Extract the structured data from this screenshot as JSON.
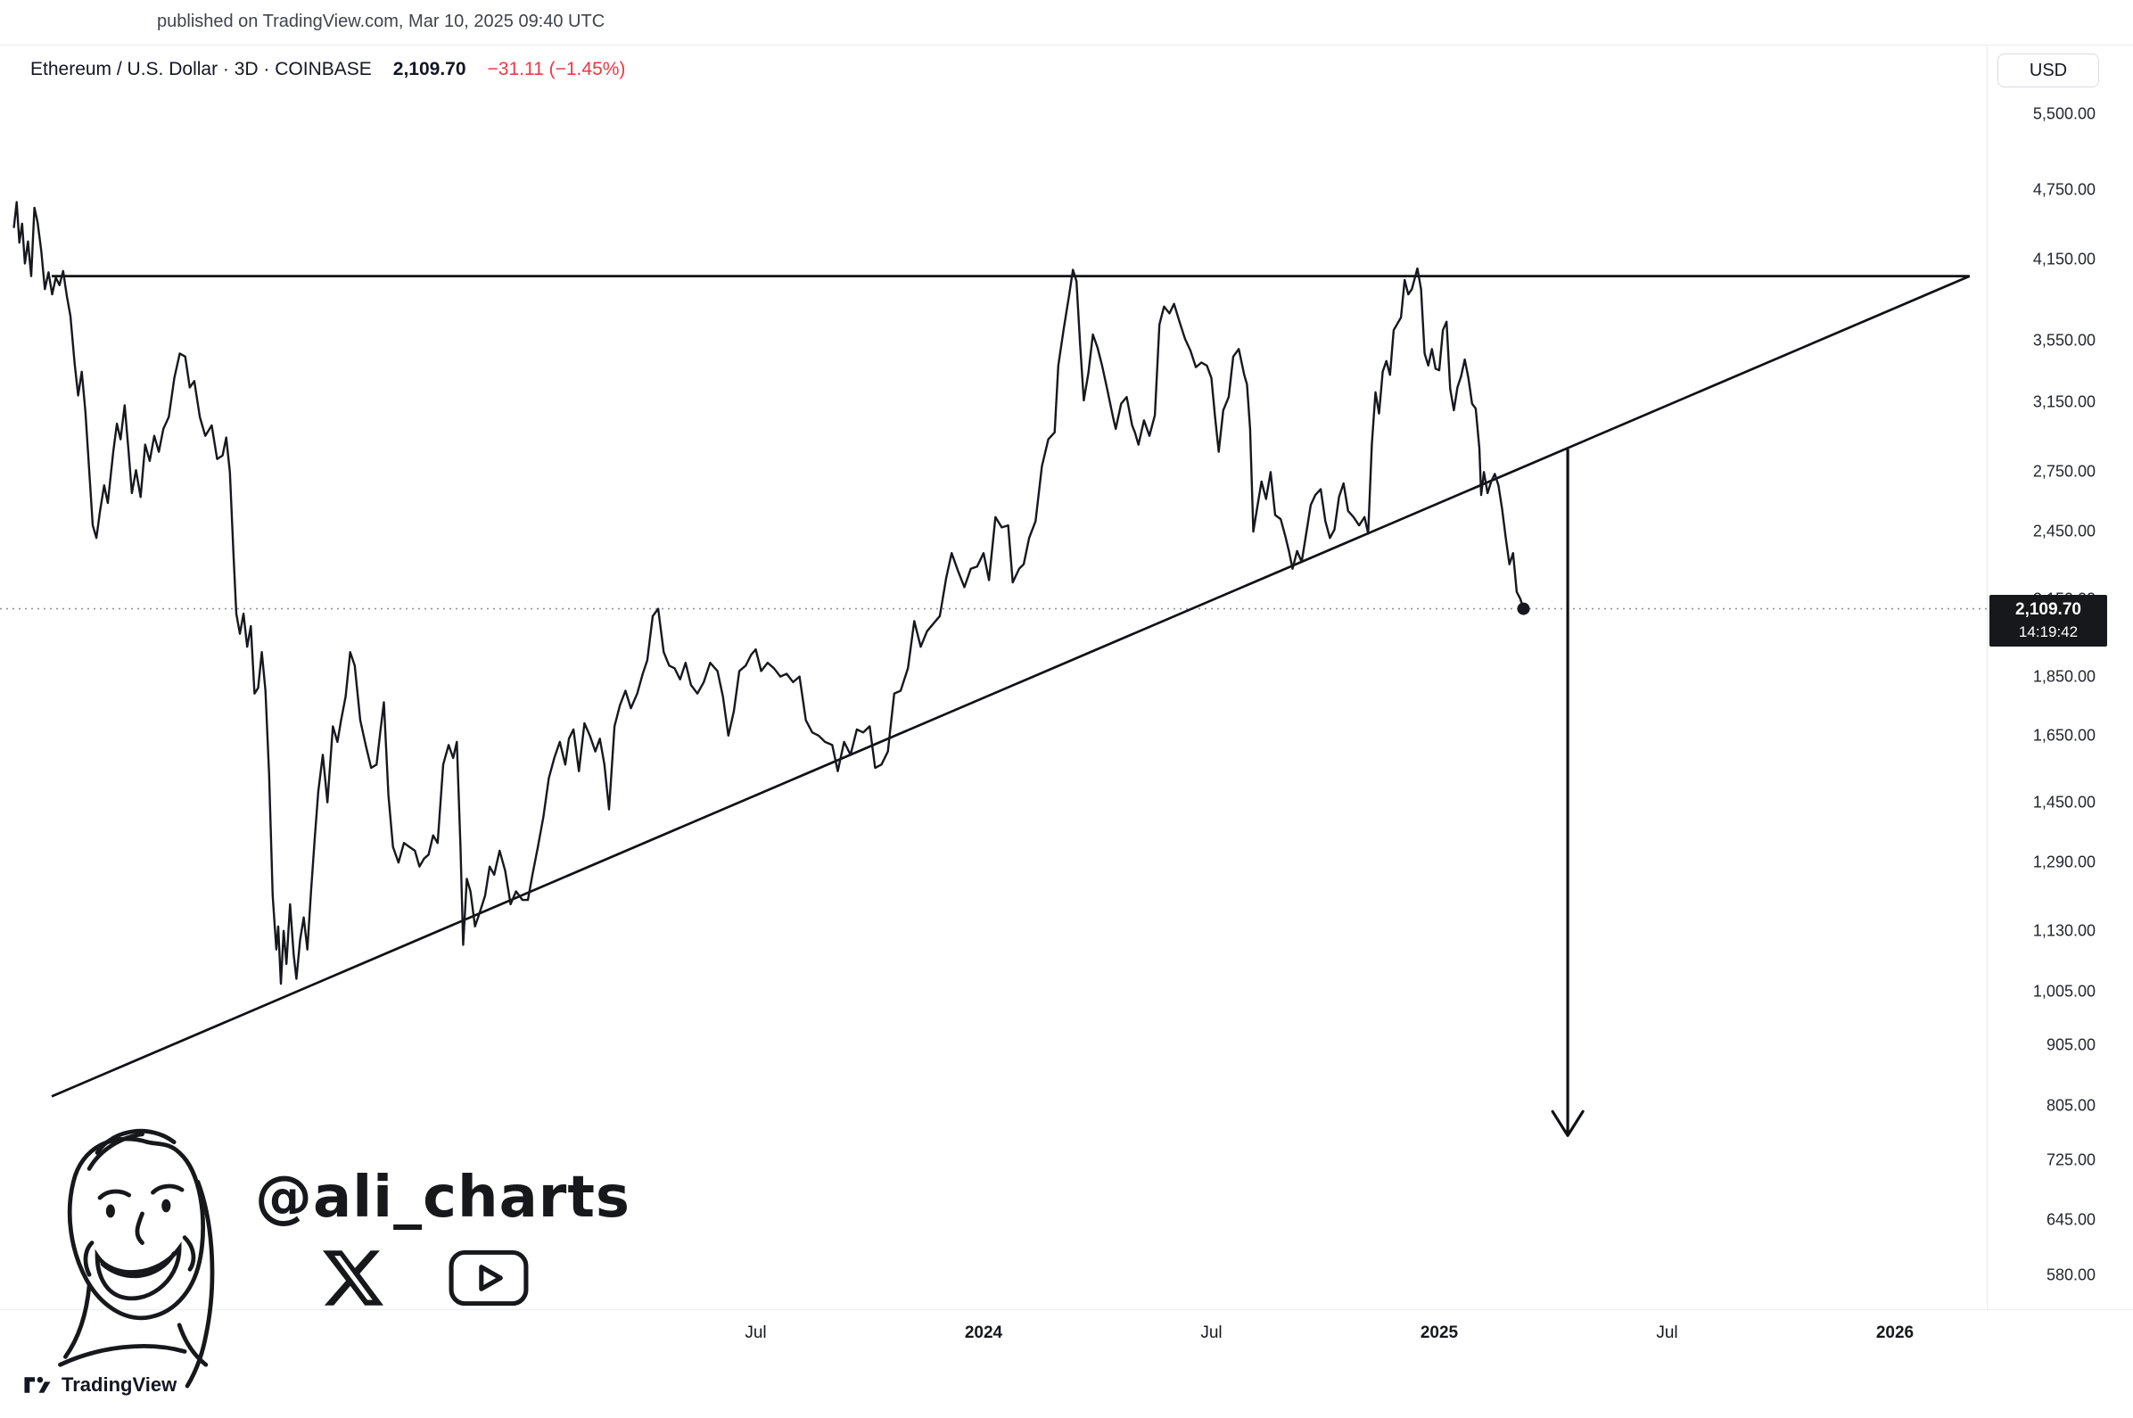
{
  "page": {
    "published_line": "published on TradingView.com, Mar 10, 2025 09:40 UTC"
  },
  "header": {
    "symbol_title": "Ethereum / U.S. Dollar · 3D · COINBASE",
    "last_price": "2,109.70",
    "change": "−31.11 (−1.45%)",
    "currency_button": "USD"
  },
  "price_label": {
    "price": "2,109.70",
    "countdown": "14:19:42"
  },
  "watermark": {
    "handle": "@ali_charts",
    "icons": [
      "x-logo",
      "youtube-logo"
    ]
  },
  "footer": {
    "brand": "TradingView"
  },
  "colors": {
    "line": "#16181d",
    "trendline": "#101114",
    "down_red": "#f23645",
    "axis_text": "#23262e",
    "grid": "#e9ebf0",
    "label_bg": "#17181b",
    "dotted_price_line": "#9094a0"
  },
  "chart_data": {
    "type": "line",
    "title": "Ethereum / U.S. Dollar",
    "exchange": "COINBASE",
    "interval": "3D",
    "scale": "log",
    "legend_position": "none",
    "grid": false,
    "y_ticks": [
      {
        "v": 5500,
        "label": "5,500.00"
      },
      {
        "v": 4750,
        "label": "4,750.00"
      },
      {
        "v": 4150,
        "label": "4,150.00"
      },
      {
        "v": 3550,
        "label": "3,550.00"
      },
      {
        "v": 3150,
        "label": "3,150.00"
      },
      {
        "v": 2750,
        "label": "2,750.00"
      },
      {
        "v": 2450,
        "label": "2,450.00"
      },
      {
        "v": 2150,
        "label": "2,150.00"
      },
      {
        "v": 1850,
        "label": "1,850.00"
      },
      {
        "v": 1650,
        "label": "1,650.00"
      },
      {
        "v": 1450,
        "label": "1,450.00"
      },
      {
        "v": 1290,
        "label": "1,290.00"
      },
      {
        "v": 1130,
        "label": "1,130.00"
      },
      {
        "v": 1005,
        "label": "1,005.00"
      },
      {
        "v": 905,
        "label": "905.00"
      },
      {
        "v": 805,
        "label": "805.00"
      },
      {
        "v": 725,
        "label": "725.00"
      },
      {
        "v": 645,
        "label": "645.00"
      },
      {
        "v": 580,
        "label": "580.00"
      }
    ],
    "x_ticks": [
      {
        "t": 2023.5,
        "label": "Jul",
        "year": false
      },
      {
        "t": 2024.0,
        "label": "2024",
        "year": true
      },
      {
        "t": 2024.5,
        "label": "Jul",
        "year": false
      },
      {
        "t": 2025.0,
        "label": "2025",
        "year": true
      },
      {
        "t": 2025.5,
        "label": "Jul",
        "year": false
      },
      {
        "t": 2026.0,
        "label": "2026",
        "year": true
      }
    ],
    "last_point": {
      "t": 2025.185,
      "price": 2109.7
    },
    "annotations": {
      "resistance_line": {
        "from": {
          "t": 2021.955,
          "p": 4020
        },
        "to": {
          "t": 2026.164,
          "p": 4020
        }
      },
      "support_line": {
        "from": {
          "t": 2021.955,
          "p": 820
        },
        "to": {
          "t": 2026.164,
          "p": 4020
        }
      },
      "target_arrow": {
        "t": 2025.282,
        "from_p": 2875,
        "to_p": 760
      },
      "price_line": {
        "p": 2109.7
      }
    },
    "series": [
      [
        2021.872,
        4420
      ],
      [
        2021.878,
        4640
      ],
      [
        2021.884,
        4290
      ],
      [
        2021.89,
        4450
      ],
      [
        2021.896,
        4120
      ],
      [
        2021.903,
        4300
      ],
      [
        2021.91,
        4020
      ],
      [
        2021.917,
        4590
      ],
      [
        2021.924,
        4460
      ],
      [
        2021.932,
        4220
      ],
      [
        2021.94,
        3920
      ],
      [
        2021.948,
        4050
      ],
      [
        2021.956,
        3880
      ],
      [
        2021.964,
        4010
      ],
      [
        2021.972,
        3950
      ],
      [
        2021.98,
        4060
      ],
      [
        2021.988,
        3870
      ],
      [
        2021.996,
        3720
      ],
      [
        2022.005,
        3400
      ],
      [
        2022.013,
        3190
      ],
      [
        2022.021,
        3340
      ],
      [
        2022.029,
        3090
      ],
      [
        2022.045,
        2480
      ],
      [
        2022.053,
        2420
      ],
      [
        2022.061,
        2550
      ],
      [
        2022.07,
        2680
      ],
      [
        2022.078,
        2590
      ],
      [
        2022.09,
        2860
      ],
      [
        2022.098,
        3020
      ],
      [
        2022.106,
        2930
      ],
      [
        2022.115,
        3130
      ],
      [
        2022.123,
        2880
      ],
      [
        2022.131,
        2640
      ],
      [
        2022.14,
        2760
      ],
      [
        2022.15,
        2620
      ],
      [
        2022.16,
        2900
      ],
      [
        2022.17,
        2810
      ],
      [
        2022.18,
        2950
      ],
      [
        2022.19,
        2860
      ],
      [
        2022.2,
        2990
      ],
      [
        2022.212,
        3060
      ],
      [
        2022.224,
        3300
      ],
      [
        2022.236,
        3460
      ],
      [
        2022.248,
        3440
      ],
      [
        2022.258,
        3240
      ],
      [
        2022.268,
        3280
      ],
      [
        2022.28,
        3060
      ],
      [
        2022.292,
        2950
      ],
      [
        2022.306,
        3010
      ],
      [
        2022.318,
        2820
      ],
      [
        2022.33,
        2840
      ],
      [
        2022.338,
        2940
      ],
      [
        2022.346,
        2750
      ],
      [
        2022.354,
        2340
      ],
      [
        2022.36,
        2090
      ],
      [
        2022.368,
        2010
      ],
      [
        2022.376,
        2090
      ],
      [
        2022.384,
        1960
      ],
      [
        2022.392,
        2040
      ],
      [
        2022.4,
        1790
      ],
      [
        2022.408,
        1810
      ],
      [
        2022.416,
        1940
      ],
      [
        2022.424,
        1800
      ],
      [
        2022.432,
        1530
      ],
      [
        2022.44,
        1210
      ],
      [
        2022.448,
        1090
      ],
      [
        2022.452,
        1140
      ],
      [
        2022.458,
        1020
      ],
      [
        2022.464,
        1130
      ],
      [
        2022.47,
        1060
      ],
      [
        2022.478,
        1190
      ],
      [
        2022.486,
        1080
      ],
      [
        2022.492,
        1030
      ],
      [
        2022.5,
        1110
      ],
      [
        2022.508,
        1160
      ],
      [
        2022.516,
        1090
      ],
      [
        2022.524,
        1220
      ],
      [
        2022.532,
        1350
      ],
      [
        2022.54,
        1480
      ],
      [
        2022.55,
        1590
      ],
      [
        2022.56,
        1450
      ],
      [
        2022.572,
        1680
      ],
      [
        2022.582,
        1630
      ],
      [
        2022.59,
        1700
      ],
      [
        2022.6,
        1780
      ],
      [
        2022.61,
        1940
      ],
      [
        2022.62,
        1890
      ],
      [
        2022.632,
        1700
      ],
      [
        2022.644,
        1620
      ],
      [
        2022.656,
        1550
      ],
      [
        2022.668,
        1560
      ],
      [
        2022.676,
        1660
      ],
      [
        2022.684,
        1760
      ],
      [
        2022.694,
        1470
      ],
      [
        2022.704,
        1330
      ],
      [
        2022.716,
        1290
      ],
      [
        2022.728,
        1340
      ],
      [
        2022.74,
        1330
      ],
      [
        2022.752,
        1320
      ],
      [
        2022.762,
        1280
      ],
      [
        2022.772,
        1300
      ],
      [
        2022.782,
        1310
      ],
      [
        2022.792,
        1360
      ],
      [
        2022.802,
        1340
      ],
      [
        2022.814,
        1560
      ],
      [
        2022.826,
        1620
      ],
      [
        2022.836,
        1580
      ],
      [
        2022.844,
        1630
      ],
      [
        2022.852,
        1330
      ],
      [
        2022.858,
        1100
      ],
      [
        2022.866,
        1250
      ],
      [
        2022.874,
        1220
      ],
      [
        2022.884,
        1140
      ],
      [
        2022.894,
        1170
      ],
      [
        2022.906,
        1210
      ],
      [
        2022.916,
        1280
      ],
      [
        2022.926,
        1260
      ],
      [
        2022.938,
        1320
      ],
      [
        2022.95,
        1270
      ],
      [
        2022.962,
        1190
      ],
      [
        2022.974,
        1220
      ],
      [
        2022.988,
        1200
      ],
      [
        2023.0,
        1200
      ],
      [
        2023.01,
        1260
      ],
      [
        2023.022,
        1330
      ],
      [
        2023.034,
        1410
      ],
      [
        2023.046,
        1520
      ],
      [
        2023.058,
        1580
      ],
      [
        2023.07,
        1630
      ],
      [
        2023.082,
        1560
      ],
      [
        2023.09,
        1640
      ],
      [
        2023.1,
        1670
      ],
      [
        2023.112,
        1540
      ],
      [
        2023.124,
        1690
      ],
      [
        2023.136,
        1650
      ],
      [
        2023.148,
        1600
      ],
      [
        2023.158,
        1640
      ],
      [
        2023.168,
        1560
      ],
      [
        2023.178,
        1430
      ],
      [
        2023.19,
        1680
      ],
      [
        2023.202,
        1750
      ],
      [
        2023.214,
        1800
      ],
      [
        2023.226,
        1740
      ],
      [
        2023.24,
        1790
      ],
      [
        2023.252,
        1860
      ],
      [
        2023.262,
        1910
      ],
      [
        2023.274,
        2080
      ],
      [
        2023.286,
        2110
      ],
      [
        2023.298,
        1940
      ],
      [
        2023.31,
        1890
      ],
      [
        2023.322,
        1880
      ],
      [
        2023.334,
        1840
      ],
      [
        2023.346,
        1900
      ],
      [
        2023.358,
        1820
      ],
      [
        2023.372,
        1790
      ],
      [
        2023.386,
        1830
      ],
      [
        2023.4,
        1900
      ],
      [
        2023.416,
        1870
      ],
      [
        2023.428,
        1780
      ],
      [
        2023.44,
        1650
      ],
      [
        2023.452,
        1730
      ],
      [
        2023.464,
        1870
      ],
      [
        2023.478,
        1890
      ],
      [
        2023.49,
        1930
      ],
      [
        2023.5,
        1950
      ],
      [
        2023.512,
        1870
      ],
      [
        2023.526,
        1900
      ],
      [
        2023.54,
        1880
      ],
      [
        2023.554,
        1850
      ],
      [
        2023.568,
        1860
      ],
      [
        2023.582,
        1830
      ],
      [
        2023.596,
        1850
      ],
      [
        2023.61,
        1700
      ],
      [
        2023.624,
        1660
      ],
      [
        2023.638,
        1650
      ],
      [
        2023.652,
        1630
      ],
      [
        2023.668,
        1620
      ],
      [
        2023.68,
        1540
      ],
      [
        2023.694,
        1630
      ],
      [
        2023.708,
        1590
      ],
      [
        2023.722,
        1670
      ],
      [
        2023.736,
        1660
      ],
      [
        2023.75,
        1680
      ],
      [
        2023.762,
        1550
      ],
      [
        2023.776,
        1560
      ],
      [
        2023.79,
        1600
      ],
      [
        2023.804,
        1790
      ],
      [
        2023.818,
        1800
      ],
      [
        2023.834,
        1880
      ],
      [
        2023.848,
        2060
      ],
      [
        2023.862,
        1960
      ],
      [
        2023.876,
        2020
      ],
      [
        2023.89,
        2050
      ],
      [
        2023.904,
        2080
      ],
      [
        2023.918,
        2240
      ],
      [
        2023.93,
        2350
      ],
      [
        2023.944,
        2270
      ],
      [
        2023.958,
        2200
      ],
      [
        2023.972,
        2280
      ],
      [
        2023.986,
        2290
      ],
      [
        2024.0,
        2350
      ],
      [
        2024.012,
        2230
      ],
      [
        2024.026,
        2520
      ],
      [
        2024.04,
        2470
      ],
      [
        2024.054,
        2480
      ],
      [
        2024.064,
        2220
      ],
      [
        2024.078,
        2280
      ],
      [
        2024.088,
        2300
      ],
      [
        2024.1,
        2420
      ],
      [
        2024.114,
        2500
      ],
      [
        2024.128,
        2780
      ],
      [
        2024.142,
        2930
      ],
      [
        2024.156,
        2970
      ],
      [
        2024.164,
        3380
      ],
      [
        2024.176,
        3630
      ],
      [
        2024.188,
        3880
      ],
      [
        2024.196,
        4070
      ],
      [
        2024.204,
        3980
      ],
      [
        2024.212,
        3520
      ],
      [
        2024.22,
        3160
      ],
      [
        2024.23,
        3330
      ],
      [
        2024.24,
        3590
      ],
      [
        2024.25,
        3500
      ],
      [
        2024.26,
        3380
      ],
      [
        2024.272,
        3220
      ],
      [
        2024.284,
        3060
      ],
      [
        2024.29,
        2990
      ],
      [
        2024.302,
        3140
      ],
      [
        2024.314,
        3180
      ],
      [
        2024.326,
        3010
      ],
      [
        2024.332,
        2970
      ],
      [
        2024.34,
        2900
      ],
      [
        2024.352,
        3040
      ],
      [
        2024.364,
        2950
      ],
      [
        2024.376,
        3070
      ],
      [
        2024.386,
        3660
      ],
      [
        2024.396,
        3790
      ],
      [
        2024.408,
        3740
      ],
      [
        2024.418,
        3810
      ],
      [
        2024.43,
        3680
      ],
      [
        2024.442,
        3560
      ],
      [
        2024.454,
        3480
      ],
      [
        2024.466,
        3370
      ],
      [
        2024.478,
        3400
      ],
      [
        2024.49,
        3380
      ],
      [
        2024.5,
        3300
      ],
      [
        2024.508,
        3060
      ],
      [
        2024.516,
        2860
      ],
      [
        2024.526,
        3100
      ],
      [
        2024.538,
        3180
      ],
      [
        2024.548,
        3440
      ],
      [
        2024.56,
        3490
      ],
      [
        2024.572,
        3320
      ],
      [
        2024.578,
        3260
      ],
      [
        2024.585,
        2990
      ],
      [
        2024.592,
        2450
      ],
      [
        2024.6,
        2560
      ],
      [
        2024.61,
        2700
      ],
      [
        2024.62,
        2610
      ],
      [
        2024.63,
        2750
      ],
      [
        2024.64,
        2530
      ],
      [
        2024.652,
        2510
      ],
      [
        2024.662,
        2430
      ],
      [
        2024.67,
        2360
      ],
      [
        2024.678,
        2280
      ],
      [
        2024.688,
        2360
      ],
      [
        2024.698,
        2310
      ],
      [
        2024.708,
        2440
      ],
      [
        2024.718,
        2580
      ],
      [
        2024.728,
        2630
      ],
      [
        2024.74,
        2660
      ],
      [
        2024.75,
        2500
      ],
      [
        2024.76,
        2420
      ],
      [
        2024.77,
        2460
      ],
      [
        2024.78,
        2620
      ],
      [
        2024.79,
        2690
      ],
      [
        2024.8,
        2550
      ],
      [
        2024.812,
        2520
      ],
      [
        2024.824,
        2480
      ],
      [
        2024.836,
        2520
      ],
      [
        2024.844,
        2440
      ],
      [
        2024.852,
        2900
      ],
      [
        2024.86,
        3210
      ],
      [
        2024.868,
        3080
      ],
      [
        2024.876,
        3340
      ],
      [
        2024.884,
        3410
      ],
      [
        2024.892,
        3320
      ],
      [
        2024.9,
        3620
      ],
      [
        2024.916,
        3710
      ],
      [
        2024.924,
        3990
      ],
      [
        2024.932,
        3880
      ],
      [
        2024.94,
        3920
      ],
      [
        2024.952,
        4080
      ],
      [
        2024.96,
        3920
      ],
      [
        2024.968,
        3460
      ],
      [
        2024.976,
        3380
      ],
      [
        2024.984,
        3490
      ],
      [
        2024.992,
        3360
      ],
      [
        2025.0,
        3350
      ],
      [
        2025.008,
        3620
      ],
      [
        2025.016,
        3680
      ],
      [
        2025.024,
        3230
      ],
      [
        2025.032,
        3100
      ],
      [
        2025.04,
        3240
      ],
      [
        2025.048,
        3310
      ],
      [
        2025.056,
        3420
      ],
      [
        2025.064,
        3300
      ],
      [
        2025.072,
        3140
      ],
      [
        2025.08,
        3110
      ],
      [
        2025.088,
        2880
      ],
      [
        2025.092,
        2630
      ],
      [
        2025.098,
        2750
      ],
      [
        2025.106,
        2640
      ],
      [
        2025.114,
        2700
      ],
      [
        2025.122,
        2740
      ],
      [
        2025.13,
        2680
      ],
      [
        2025.138,
        2560
      ],
      [
        2025.146,
        2420
      ],
      [
        2025.154,
        2300
      ],
      [
        2025.162,
        2350
      ],
      [
        2025.17,
        2180
      ],
      [
        2025.178,
        2150
      ],
      [
        2025.185,
        2109.7
      ]
    ]
  }
}
